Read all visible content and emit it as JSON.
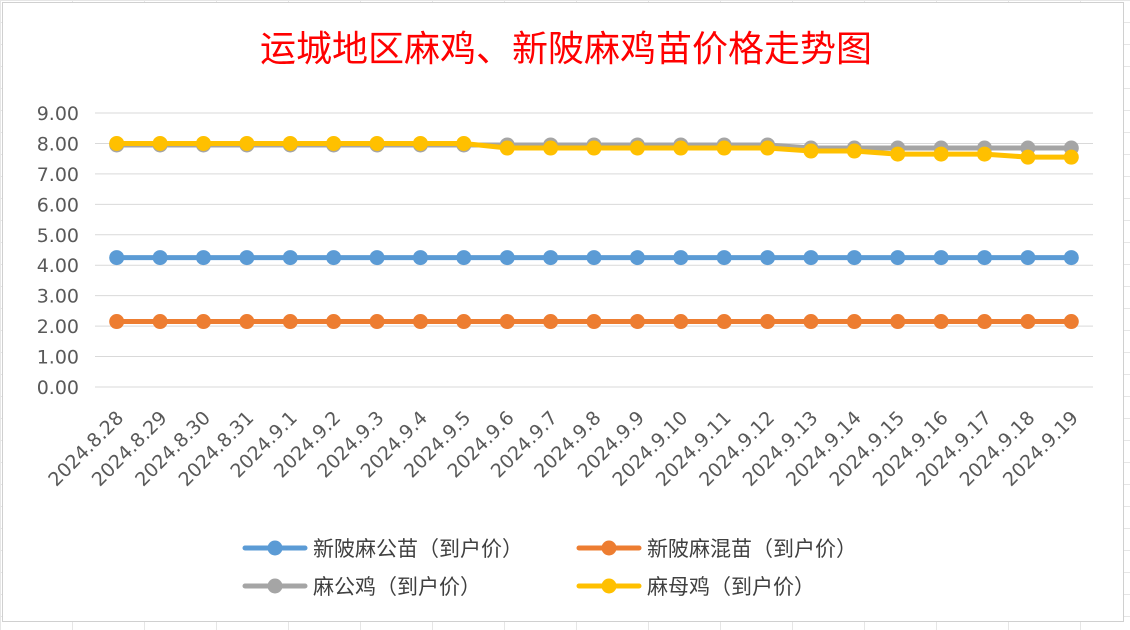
{
  "chart_data": {
    "type": "line",
    "title": "运城地区麻鸡、新陂麻鸡苗价格走势图",
    "xlabel": "",
    "ylabel": "",
    "ylim": [
      0,
      9
    ],
    "yticks": [
      "0.00",
      "1.00",
      "2.00",
      "3.00",
      "4.00",
      "5.00",
      "6.00",
      "7.00",
      "8.00",
      "9.00"
    ],
    "grid": true,
    "legend_position": "bottom",
    "categories": [
      "2024.8.28",
      "2024.8.29",
      "2024.8.30",
      "2024.8.31",
      "2024.9.1",
      "2024.9.2",
      "2024.9.3",
      "2024.9.4",
      "2024.9.5",
      "2024.9.6",
      "2024.9.7",
      "2024.9.8",
      "2024.9.9",
      "2024.9.10",
      "2024.9.11",
      "2024.9.12",
      "2024.9.13",
      "2024.9.14",
      "2024.9.15",
      "2024.9.16",
      "2024.9.17",
      "2024.9.18",
      "2024.9.19"
    ],
    "series": [
      {
        "name": "新陂麻公苗（到户价）",
        "color": "#5b9bd5",
        "values": [
          4.25,
          4.25,
          4.25,
          4.25,
          4.25,
          4.25,
          4.25,
          4.25,
          4.25,
          4.25,
          4.25,
          4.25,
          4.25,
          4.25,
          4.25,
          4.25,
          4.25,
          4.25,
          4.25,
          4.25,
          4.25,
          4.25,
          4.25
        ]
      },
      {
        "name": "新陂麻混苗（到户价）",
        "color": "#ed7d31",
        "values": [
          2.15,
          2.15,
          2.15,
          2.15,
          2.15,
          2.15,
          2.15,
          2.15,
          2.15,
          2.15,
          2.15,
          2.15,
          2.15,
          2.15,
          2.15,
          2.15,
          2.15,
          2.15,
          2.15,
          2.15,
          2.15,
          2.15,
          2.15
        ]
      },
      {
        "name": "麻公鸡（到户价）",
        "color": "#a5a5a5",
        "values": [
          7.95,
          7.95,
          7.95,
          7.95,
          7.95,
          7.95,
          7.95,
          7.95,
          7.95,
          7.95,
          7.95,
          7.95,
          7.95,
          7.95,
          7.95,
          7.95,
          7.85,
          7.85,
          7.85,
          7.85,
          7.85,
          7.85,
          7.85
        ]
      },
      {
        "name": "麻母鸡（到户价）",
        "color": "#ffc000",
        "values": [
          8.0,
          8.0,
          8.0,
          8.0,
          8.0,
          8.0,
          8.0,
          8.0,
          8.0,
          7.85,
          7.85,
          7.85,
          7.85,
          7.85,
          7.85,
          7.85,
          7.75,
          7.75,
          7.65,
          7.65,
          7.65,
          7.55,
          7.55
        ]
      }
    ]
  }
}
